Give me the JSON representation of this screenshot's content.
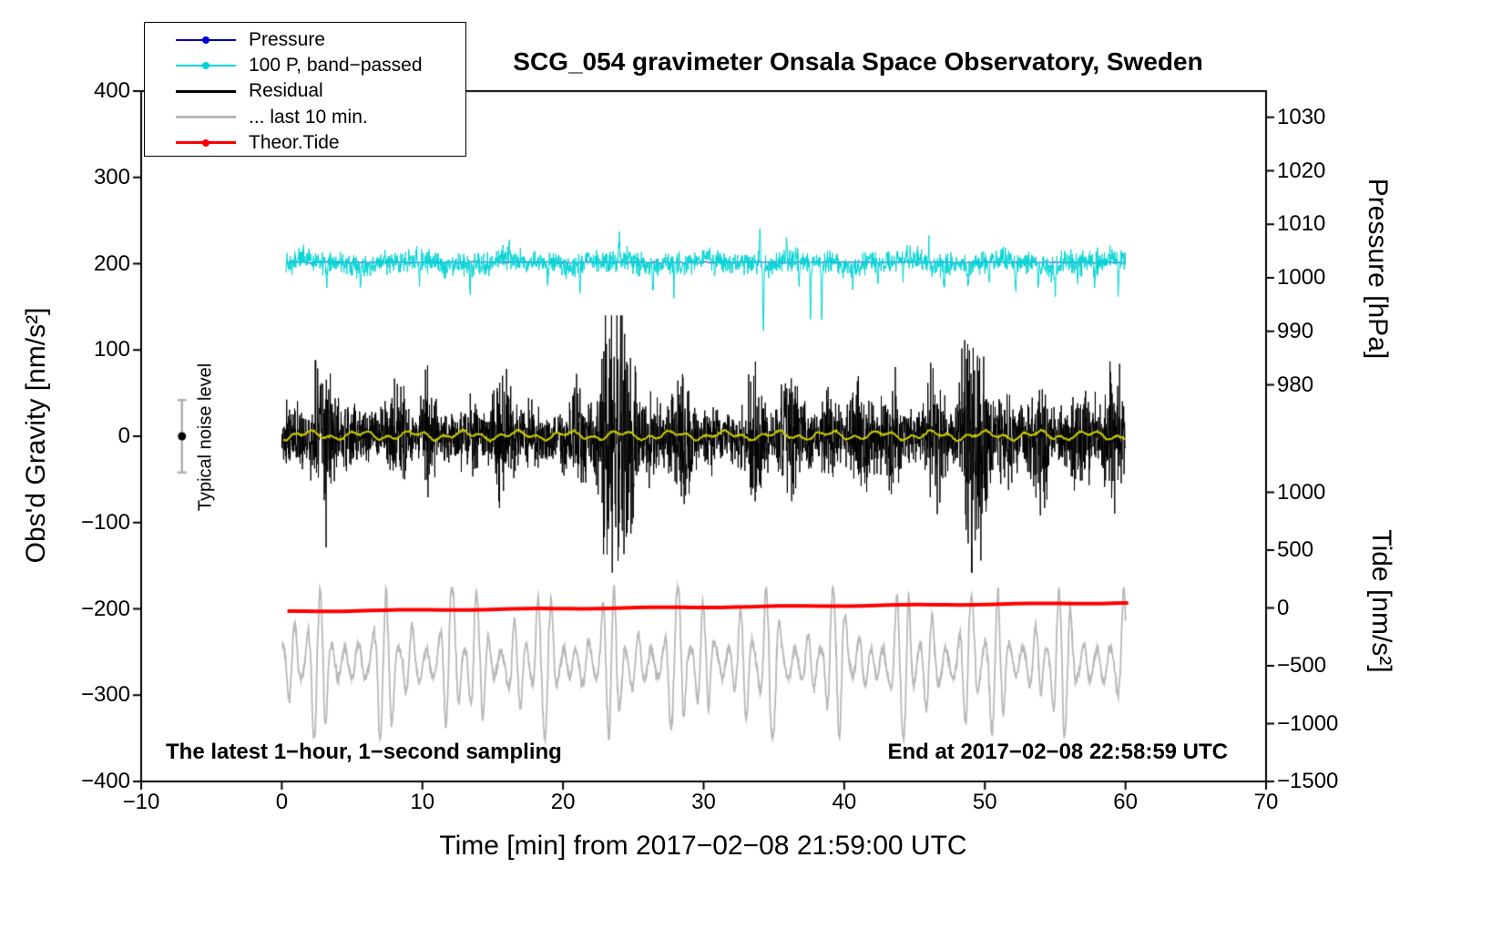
{
  "legend": {
    "items": [
      {
        "label": "Pressure",
        "color": "#0000cc",
        "dot": true,
        "lw": 2
      },
      {
        "label": "100 P, band−passed",
        "color": "#00d3d3",
        "dot": true,
        "lw": 2
      },
      {
        "label": "Residual",
        "color": "#000000",
        "dot": false,
        "lw": 3
      },
      {
        "label": "... last 10 min.",
        "color": "#b8b8b8",
        "dot": false,
        "lw": 3
      },
      {
        "label": "Theor.Tide",
        "color": "#ff0000",
        "dot": true,
        "lw": 3
      }
    ]
  },
  "chart_data": {
    "type": "line",
    "title": "SCG_054 gravimeter Onsala Space Observatory, Sweden",
    "xlabel": "Time [min] from 2017−02−08 21:59:00 UTC",
    "ylabel_left": "Obs'd Gravity [nm/s²]",
    "xlim": [
      -10,
      70
    ],
    "ylim_left": [
      -400,
      400
    ],
    "x_ticks": [
      -10,
      0,
      10,
      20,
      30,
      40,
      50,
      60,
      70
    ],
    "y_ticks_left": [
      400,
      300,
      200,
      100,
      0,
      -100,
      -200,
      -300,
      -400
    ],
    "grid": false,
    "legend_position": "top-left",
    "pressure_axis": {
      "label": "Pressure [hPa]",
      "ticks": [
        1030,
        1020,
        1010,
        1000,
        990,
        980
      ],
      "g_at_980": 59.6,
      "g_per_hPa": 6.2
    },
    "tide_axis": {
      "label": "Tide [nm/s²]",
      "ticks": [
        1000,
        500,
        0,
        -500,
        -1000,
        -1500
      ],
      "g_at_zero": -199,
      "g_per_unit": 0.134
    },
    "annotations": {
      "sampling": "The latest 1−hour, 1−second sampling",
      "end_time": "End at 2017−02−08 22:58:59 UTC",
      "noise_level": "Typical noise level"
    },
    "noise_marker": {
      "x": -7.1,
      "value": 0,
      "error": 21,
      "bar_color": "#b0b0b0",
      "dot_color": "#000000"
    },
    "series": [
      {
        "name": "... last 10 min.",
        "kind": "oscillation",
        "color": "#b8b8b8",
        "lw": 1.8,
        "x_range": [
          0.05,
          60.0
        ],
        "baseline": -263,
        "period_min": 0.9,
        "amp_min": 16,
        "amp_max": 86
      },
      {
        "name": "Theor.Tide",
        "kind": "trend",
        "color": "#ff0000",
        "lw": 4,
        "x_range": [
          0.4,
          60.2
        ],
        "start_value": -203,
        "end_value": -193
      },
      {
        "name": "Pressure",
        "kind": "flat",
        "color": "#0000cc",
        "lw": 1,
        "x_range": [
          0.3,
          60.0
        ],
        "baseline": 201.5,
        "noise_amp": 1.2
      },
      {
        "name": "100 P, band−passed",
        "kind": "noisy",
        "color": "#00d3d3",
        "lw": 1,
        "x_range": [
          0.3,
          60.0
        ],
        "baseline": 201,
        "noise_amp": 9,
        "spikes": [
          [
            3.2,
            -20
          ],
          [
            5.6,
            -30
          ],
          [
            9.8,
            -22
          ],
          [
            13.4,
            -30
          ],
          [
            16.2,
            22
          ],
          [
            18.9,
            -24
          ],
          [
            21.2,
            -34
          ],
          [
            24.0,
            26
          ],
          [
            26.4,
            -22
          ],
          [
            27.9,
            -28
          ],
          [
            30.8,
            -24
          ],
          [
            34.0,
            48
          ],
          [
            34.25,
            -78
          ],
          [
            35.9,
            30
          ],
          [
            36.8,
            -30
          ],
          [
            37.6,
            -64
          ],
          [
            38.4,
            -70
          ],
          [
            40.6,
            -22
          ],
          [
            42.4,
            -26
          ],
          [
            44.2,
            -28
          ],
          [
            46.0,
            24
          ],
          [
            47.1,
            -30
          ],
          [
            48.8,
            -24
          ],
          [
            50.3,
            -30
          ],
          [
            52.2,
            -40
          ],
          [
            53.8,
            -26
          ],
          [
            55.0,
            -36
          ],
          [
            56.6,
            -24
          ],
          [
            57.8,
            -30
          ],
          [
            59.5,
            -50
          ]
        ]
      },
      {
        "name": "Residual",
        "kind": "burst_noise",
        "color": "#000000",
        "lw": 1,
        "x_range": [
          0.0,
          60.0
        ],
        "baseline": 0,
        "base_amp": 20,
        "mod_amp": 34,
        "bursts": [
          [
            23.9,
            1.2,
            80
          ],
          [
            49.4,
            0.9,
            74
          ],
          [
            36.4,
            0.7,
            26
          ],
          [
            43.4,
            0.6,
            20
          ],
          [
            3.1,
            0.7,
            14
          ],
          [
            56.9,
            0.8,
            22
          ]
        ],
        "clip": [
          -158,
          140
        ]
      },
      {
        "name": "residual low-pass (yellow)",
        "kind": "smooth",
        "color": "#c9c900",
        "lw": 2,
        "x_range": [
          0.1,
          60.0
        ],
        "baseline": 1,
        "amp": 5
      }
    ]
  }
}
